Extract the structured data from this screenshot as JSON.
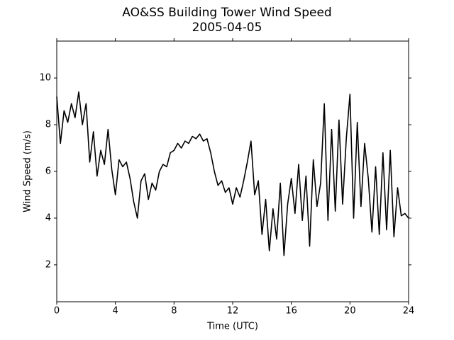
{
  "chart_data": {
    "type": "line",
    "title": "AO&SS Building Tower Wind Speed",
    "subtitle": "2005-04-05",
    "x_label": "Time (UTC)",
    "y_label": "Wind Speed (m/s)",
    "x": [
      0,
      0.25,
      0.5,
      0.75,
      1,
      1.25,
      1.5,
      1.75,
      2,
      2.25,
      2.5,
      2.75,
      3,
      3.25,
      3.5,
      3.75,
      4,
      4.25,
      4.5,
      4.75,
      5,
      5.25,
      5.5,
      5.75,
      6,
      6.25,
      6.5,
      6.75,
      7,
      7.25,
      7.5,
      7.75,
      8,
      8.25,
      8.5,
      8.75,
      9,
      9.25,
      9.5,
      9.75,
      10,
      10.25,
      10.5,
      10.75,
      11,
      11.25,
      11.5,
      11.75,
      12,
      12.25,
      12.5,
      12.75,
      13,
      13.25,
      13.5,
      13.75,
      14,
      14.25,
      14.5,
      14.75,
      15,
      15.25,
      15.5,
      15.75,
      16,
      16.25,
      16.5,
      16.75,
      17,
      17.25,
      17.5,
      17.75,
      18,
      18.25,
      18.5,
      18.75,
      19,
      19.25,
      19.5,
      19.75,
      20,
      20.25,
      20.5,
      20.75,
      21,
      21.25,
      21.5,
      21.75,
      22,
      22.25,
      22.5,
      22.75,
      23,
      23.25,
      23.5,
      23.75,
      24
    ],
    "series": [
      {
        "name": "Wind Speed",
        "color": "#000000",
        "values": [
          9.2,
          7.2,
          8.6,
          8.1,
          8.9,
          8.3,
          9.4,
          8.0,
          8.9,
          6.4,
          7.7,
          5.8,
          6.9,
          6.3,
          7.8,
          6.1,
          5.0,
          6.5,
          6.2,
          6.4,
          5.7,
          4.7,
          4.0,
          5.6,
          5.9,
          4.8,
          5.5,
          5.2,
          6.0,
          6.3,
          6.2,
          6.8,
          6.9,
          7.2,
          7.0,
          7.3,
          7.2,
          7.5,
          7.4,
          7.6,
          7.3,
          7.4,
          6.8,
          6.0,
          5.4,
          5.6,
          5.1,
          5.3,
          4.6,
          5.3,
          4.9,
          5.6,
          6.4,
          7.3,
          5.0,
          5.6,
          3.3,
          4.8,
          2.6,
          4.4,
          3.1,
          5.5,
          2.4,
          4.6,
          5.7,
          4.2,
          6.3,
          3.9,
          5.8,
          2.8,
          6.5,
          4.5,
          5.5,
          8.9,
          3.9,
          7.8,
          4.3,
          8.2,
          4.6,
          7.4,
          9.3,
          4.0,
          8.1,
          4.5,
          7.2,
          5.7,
          3.4,
          6.2,
          3.3,
          6.8,
          3.5,
          6.9,
          3.2,
          5.3,
          4.1,
          4.2,
          4.0
        ]
      }
    ],
    "xlim": [
      0,
      24
    ],
    "xticks": [
      0,
      4,
      8,
      12,
      16,
      20,
      24
    ],
    "ylim": [
      0.42,
      11.58
    ],
    "yticks": [
      2,
      4,
      6,
      8,
      10
    ]
  }
}
